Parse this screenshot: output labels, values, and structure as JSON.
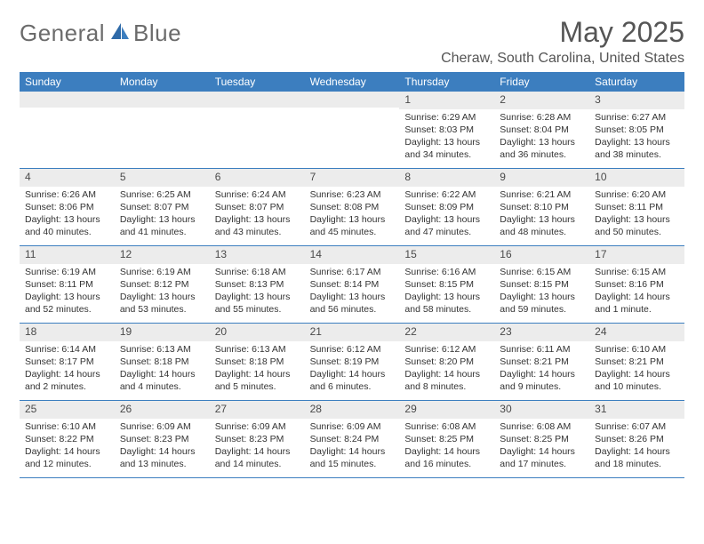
{
  "brand": {
    "name1": "General",
    "name2": "Blue"
  },
  "title": "May 2025",
  "location": "Cheraw, South Carolina, United States",
  "colors": {
    "header_bg": "#3c7ebf",
    "header_text": "#ffffff",
    "daynum_bg": "#ececec",
    "text": "#333333",
    "title_text": "#555555",
    "rule": "#3c7ebf"
  },
  "daysOfWeek": [
    "Sunday",
    "Monday",
    "Tuesday",
    "Wednesday",
    "Thursday",
    "Friday",
    "Saturday"
  ],
  "weeks": [
    [
      {
        "n": "",
        "sr": "",
        "ss": "",
        "dl": ""
      },
      {
        "n": "",
        "sr": "",
        "ss": "",
        "dl": ""
      },
      {
        "n": "",
        "sr": "",
        "ss": "",
        "dl": ""
      },
      {
        "n": "",
        "sr": "",
        "ss": "",
        "dl": ""
      },
      {
        "n": "1",
        "sr": "Sunrise: 6:29 AM",
        "ss": "Sunset: 8:03 PM",
        "dl": "Daylight: 13 hours and 34 minutes."
      },
      {
        "n": "2",
        "sr": "Sunrise: 6:28 AM",
        "ss": "Sunset: 8:04 PM",
        "dl": "Daylight: 13 hours and 36 minutes."
      },
      {
        "n": "3",
        "sr": "Sunrise: 6:27 AM",
        "ss": "Sunset: 8:05 PM",
        "dl": "Daylight: 13 hours and 38 minutes."
      }
    ],
    [
      {
        "n": "4",
        "sr": "Sunrise: 6:26 AM",
        "ss": "Sunset: 8:06 PM",
        "dl": "Daylight: 13 hours and 40 minutes."
      },
      {
        "n": "5",
        "sr": "Sunrise: 6:25 AM",
        "ss": "Sunset: 8:07 PM",
        "dl": "Daylight: 13 hours and 41 minutes."
      },
      {
        "n": "6",
        "sr": "Sunrise: 6:24 AM",
        "ss": "Sunset: 8:07 PM",
        "dl": "Daylight: 13 hours and 43 minutes."
      },
      {
        "n": "7",
        "sr": "Sunrise: 6:23 AM",
        "ss": "Sunset: 8:08 PM",
        "dl": "Daylight: 13 hours and 45 minutes."
      },
      {
        "n": "8",
        "sr": "Sunrise: 6:22 AM",
        "ss": "Sunset: 8:09 PM",
        "dl": "Daylight: 13 hours and 47 minutes."
      },
      {
        "n": "9",
        "sr": "Sunrise: 6:21 AM",
        "ss": "Sunset: 8:10 PM",
        "dl": "Daylight: 13 hours and 48 minutes."
      },
      {
        "n": "10",
        "sr": "Sunrise: 6:20 AM",
        "ss": "Sunset: 8:11 PM",
        "dl": "Daylight: 13 hours and 50 minutes."
      }
    ],
    [
      {
        "n": "11",
        "sr": "Sunrise: 6:19 AM",
        "ss": "Sunset: 8:11 PM",
        "dl": "Daylight: 13 hours and 52 minutes."
      },
      {
        "n": "12",
        "sr": "Sunrise: 6:19 AM",
        "ss": "Sunset: 8:12 PM",
        "dl": "Daylight: 13 hours and 53 minutes."
      },
      {
        "n": "13",
        "sr": "Sunrise: 6:18 AM",
        "ss": "Sunset: 8:13 PM",
        "dl": "Daylight: 13 hours and 55 minutes."
      },
      {
        "n": "14",
        "sr": "Sunrise: 6:17 AM",
        "ss": "Sunset: 8:14 PM",
        "dl": "Daylight: 13 hours and 56 minutes."
      },
      {
        "n": "15",
        "sr": "Sunrise: 6:16 AM",
        "ss": "Sunset: 8:15 PM",
        "dl": "Daylight: 13 hours and 58 minutes."
      },
      {
        "n": "16",
        "sr": "Sunrise: 6:15 AM",
        "ss": "Sunset: 8:15 PM",
        "dl": "Daylight: 13 hours and 59 minutes."
      },
      {
        "n": "17",
        "sr": "Sunrise: 6:15 AM",
        "ss": "Sunset: 8:16 PM",
        "dl": "Daylight: 14 hours and 1 minute."
      }
    ],
    [
      {
        "n": "18",
        "sr": "Sunrise: 6:14 AM",
        "ss": "Sunset: 8:17 PM",
        "dl": "Daylight: 14 hours and 2 minutes."
      },
      {
        "n": "19",
        "sr": "Sunrise: 6:13 AM",
        "ss": "Sunset: 8:18 PM",
        "dl": "Daylight: 14 hours and 4 minutes."
      },
      {
        "n": "20",
        "sr": "Sunrise: 6:13 AM",
        "ss": "Sunset: 8:18 PM",
        "dl": "Daylight: 14 hours and 5 minutes."
      },
      {
        "n": "21",
        "sr": "Sunrise: 6:12 AM",
        "ss": "Sunset: 8:19 PM",
        "dl": "Daylight: 14 hours and 6 minutes."
      },
      {
        "n": "22",
        "sr": "Sunrise: 6:12 AM",
        "ss": "Sunset: 8:20 PM",
        "dl": "Daylight: 14 hours and 8 minutes."
      },
      {
        "n": "23",
        "sr": "Sunrise: 6:11 AM",
        "ss": "Sunset: 8:21 PM",
        "dl": "Daylight: 14 hours and 9 minutes."
      },
      {
        "n": "24",
        "sr": "Sunrise: 6:10 AM",
        "ss": "Sunset: 8:21 PM",
        "dl": "Daylight: 14 hours and 10 minutes."
      }
    ],
    [
      {
        "n": "25",
        "sr": "Sunrise: 6:10 AM",
        "ss": "Sunset: 8:22 PM",
        "dl": "Daylight: 14 hours and 12 minutes."
      },
      {
        "n": "26",
        "sr": "Sunrise: 6:09 AM",
        "ss": "Sunset: 8:23 PM",
        "dl": "Daylight: 14 hours and 13 minutes."
      },
      {
        "n": "27",
        "sr": "Sunrise: 6:09 AM",
        "ss": "Sunset: 8:23 PM",
        "dl": "Daylight: 14 hours and 14 minutes."
      },
      {
        "n": "28",
        "sr": "Sunrise: 6:09 AM",
        "ss": "Sunset: 8:24 PM",
        "dl": "Daylight: 14 hours and 15 minutes."
      },
      {
        "n": "29",
        "sr": "Sunrise: 6:08 AM",
        "ss": "Sunset: 8:25 PM",
        "dl": "Daylight: 14 hours and 16 minutes."
      },
      {
        "n": "30",
        "sr": "Sunrise: 6:08 AM",
        "ss": "Sunset: 8:25 PM",
        "dl": "Daylight: 14 hours and 17 minutes."
      },
      {
        "n": "31",
        "sr": "Sunrise: 6:07 AM",
        "ss": "Sunset: 8:26 PM",
        "dl": "Daylight: 14 hours and 18 minutes."
      }
    ]
  ]
}
